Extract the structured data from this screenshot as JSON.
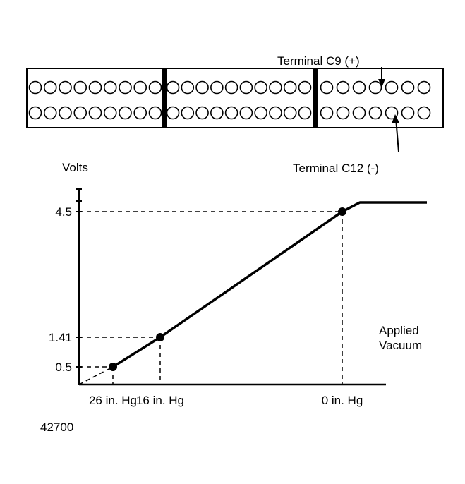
{
  "connector": {
    "sections": [
      9,
      10,
      7
    ],
    "rows": 2,
    "terminal_positive_label": "Terminal C9 (+)",
    "terminal_negative_label": "Terminal C12 (-)"
  },
  "chart_data": {
    "type": "line",
    "ylabel": "Volts",
    "xlabel": "Applied Vacuum",
    "y_ticks": [
      "4.5",
      "1.41",
      "0.5"
    ],
    "x_ticks": [
      "26 in. Hg",
      "16 in. Hg",
      "0 in. Hg"
    ],
    "points": [
      {
        "x": "26 in. Hg",
        "y": 0.5
      },
      {
        "x": "16 in. Hg",
        "y": 1.41
      },
      {
        "x": "0 in. Hg",
        "y": 4.5
      }
    ],
    "plateau_after_0_in_hg": true,
    "grid": false
  },
  "figure_number": "42700"
}
